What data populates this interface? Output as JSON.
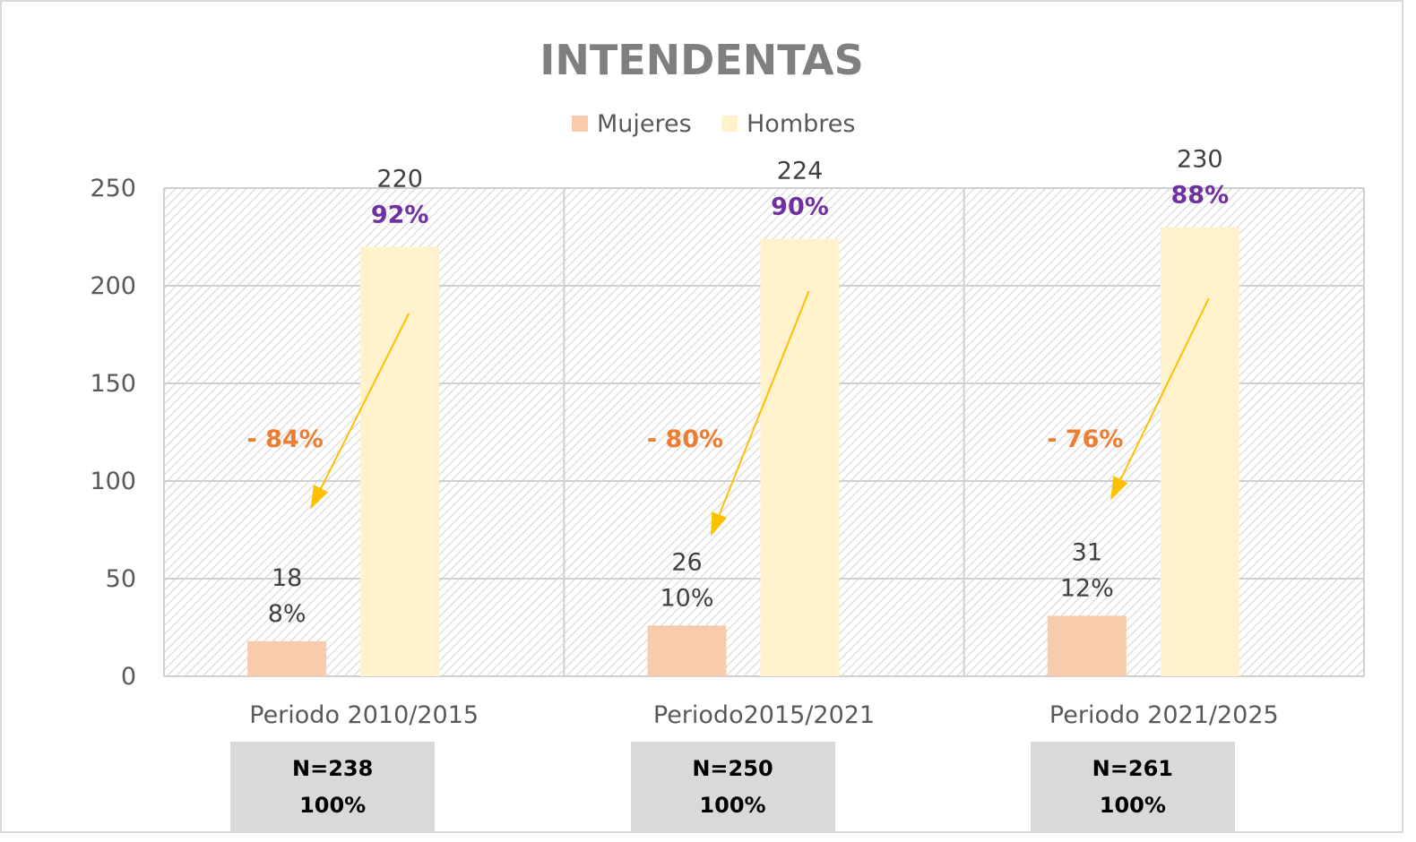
{
  "chart_data": {
    "type": "bar",
    "title": "INTENDENTAS",
    "categories": [
      "Periodo 2010/2015",
      "Periodo2015/2021",
      "Periodo 2021/2025"
    ],
    "series": [
      {
        "name": "Mujeres",
        "values": [
          18,
          26,
          31
        ],
        "percent_labels": [
          "8%",
          "10%",
          "12%"
        ],
        "color": "#f8cbad"
      },
      {
        "name": "Hombres",
        "values": [
          220,
          224,
          230
        ],
        "percent_labels": [
          "92%",
          "90%",
          "88%"
        ],
        "color": "#fff2cc"
      }
    ],
    "y_ticks": [
      0,
      50,
      100,
      150,
      200,
      250
    ],
    "ylim": [
      0,
      250
    ],
    "grid": true,
    "legend_position": "top-center",
    "gap_labels": [
      "- 84%",
      "- 80%",
      "- 76%"
    ],
    "totals": [
      {
        "n": "N=238",
        "pct": "100%"
      },
      {
        "n": "N=250",
        "pct": "100%"
      },
      {
        "n": "N=261",
        "pct": "100%"
      }
    ],
    "colors": {
      "title": "#7f7f7f",
      "hombres_pct_label": "#7030a0",
      "gap_label": "#ed7d31",
      "arrow": "#ffc000",
      "value_label": "#404040",
      "axis_text": "#595959"
    }
  }
}
